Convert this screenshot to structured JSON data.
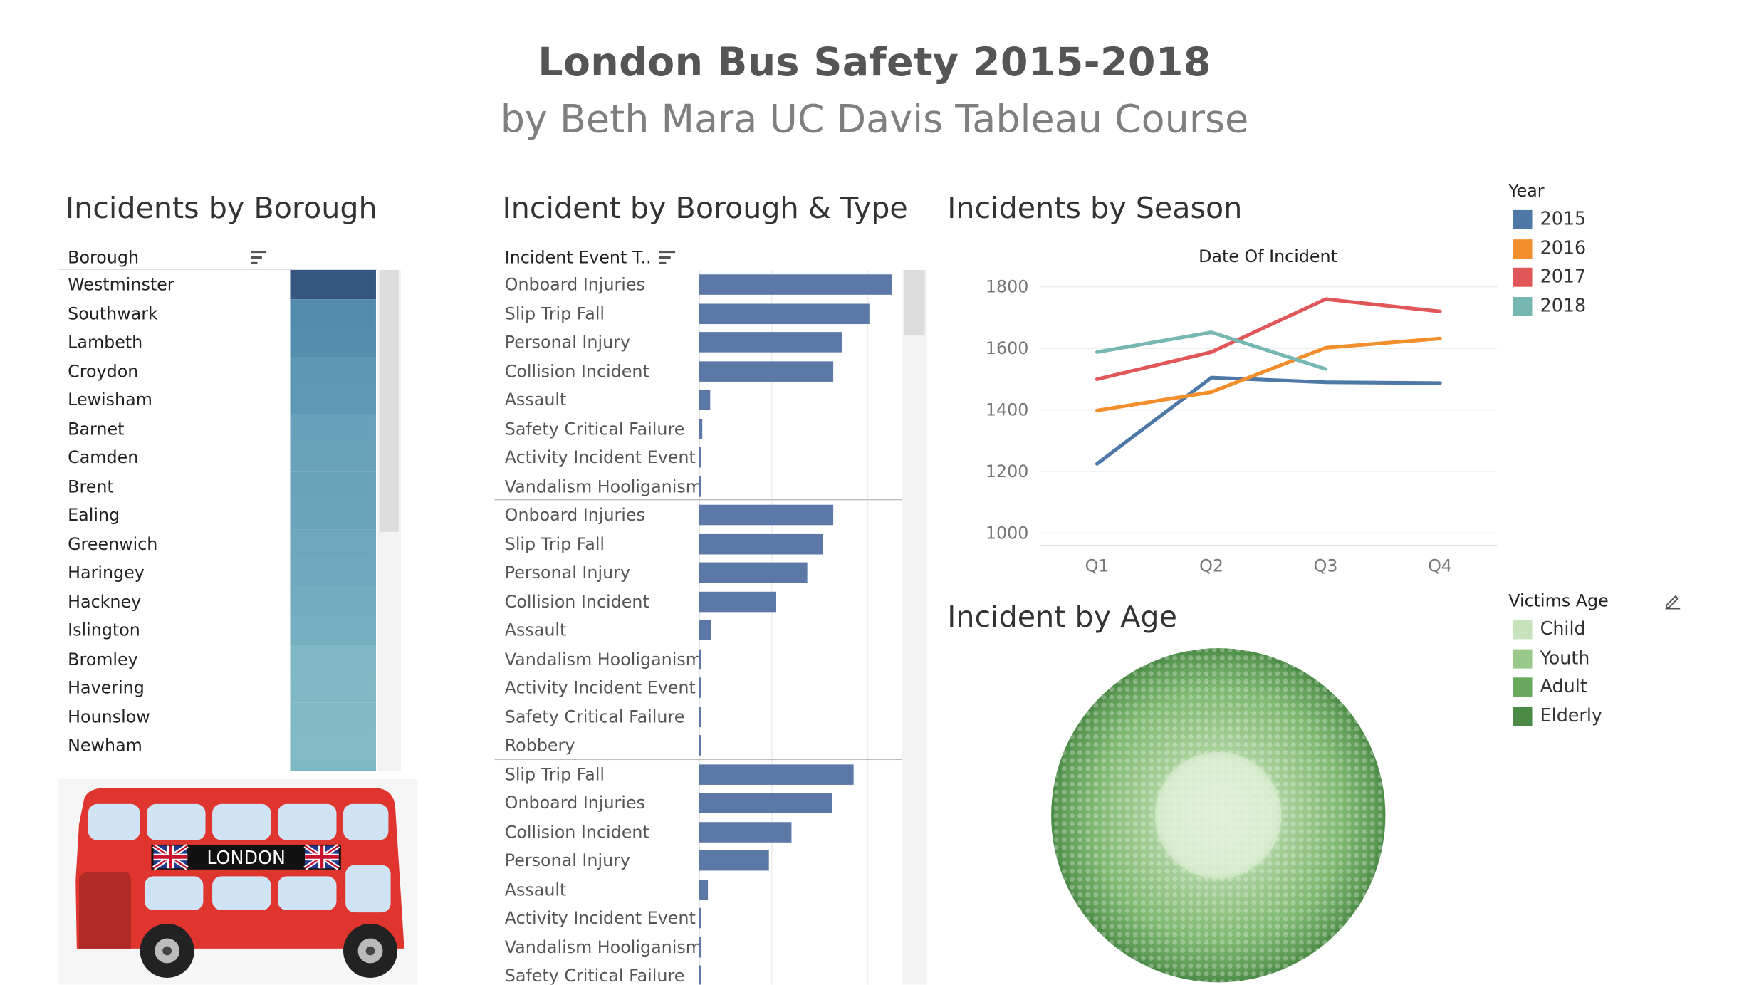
{
  "dashboard": {
    "title": "London Bus Safety 2015-2018",
    "subtitle": "by Beth Mara UC Davis Tableau Course"
  },
  "colors": {
    "y2015": "#4e79a7",
    "y2016": "#f28e2b",
    "y2017": "#e15759",
    "y2018": "#76b7b2",
    "bar": "#5b78a6",
    "bus_red": "#e0342f",
    "window": "#cfe3f5"
  },
  "bus_sign": "LONDON",
  "chart_data": [
    {
      "type": "heatmap",
      "title": "Incidents by Borough",
      "column_header": "Borough",
      "rows": [
        {
          "label": "Westminster",
          "value": 1.0
        },
        {
          "label": "Southwark",
          "value": 0.86
        },
        {
          "label": "Lambeth",
          "value": 0.84
        },
        {
          "label": "Croydon",
          "value": 0.76
        },
        {
          "label": "Lewisham",
          "value": 0.75
        },
        {
          "label": "Barnet",
          "value": 0.66
        },
        {
          "label": "Camden",
          "value": 0.65
        },
        {
          "label": "Brent",
          "value": 0.64
        },
        {
          "label": "Ealing",
          "value": 0.63
        },
        {
          "label": "Greenwich",
          "value": 0.6
        },
        {
          "label": "Haringey",
          "value": 0.58
        },
        {
          "label": "Hackney",
          "value": 0.56
        },
        {
          "label": "Islington",
          "value": 0.54
        },
        {
          "label": "Bromley",
          "value": 0.45
        },
        {
          "label": "Havering",
          "value": 0.44
        },
        {
          "label": "Hounslow",
          "value": 0.43
        },
        {
          "label": "Newham",
          "value": 0.42
        }
      ]
    },
    {
      "type": "bar",
      "title": "Incident by Borough & Type",
      "column_header": "Incident Event T..",
      "groups": [
        {
          "items": [
            {
              "label": "Onboard Injuries",
              "value": 172
            },
            {
              "label": "Slip Trip Fall",
              "value": 152
            },
            {
              "label": "Personal Injury",
              "value": 128
            },
            {
              "label": "Collision Incident",
              "value": 120
            },
            {
              "label": "Assault",
              "value": 10
            },
            {
              "label": "Safety Critical Failure",
              "value": 3
            },
            {
              "label": "Activity Incident Event",
              "value": 2
            },
            {
              "label": "Vandalism Hooliganism",
              "value": 1
            }
          ]
        },
        {
          "items": [
            {
              "label": "Onboard Injuries",
              "value": 120
            },
            {
              "label": "Slip Trip Fall",
              "value": 111
            },
            {
              "label": "Personal Injury",
              "value": 97
            },
            {
              "label": "Collision Incident",
              "value": 68
            },
            {
              "label": "Assault",
              "value": 11
            },
            {
              "label": "Vandalism Hooliganism",
              "value": 2
            },
            {
              "label": "Activity Incident Event",
              "value": 1
            },
            {
              "label": "Safety Critical Failure",
              "value": 1
            },
            {
              "label": "Robbery",
              "value": 1
            }
          ]
        },
        {
          "items": [
            {
              "label": "Slip Trip Fall",
              "value": 138
            },
            {
              "label": "Onboard Injuries",
              "value": 119
            },
            {
              "label": "Collision Incident",
              "value": 82
            },
            {
              "label": "Personal Injury",
              "value": 62
            },
            {
              "label": "Assault",
              "value": 8
            },
            {
              "label": "Activity Incident Event",
              "value": 1
            },
            {
              "label": "Vandalism Hooliganism",
              "value": 1
            },
            {
              "label": "Safety Critical Failure",
              "value": 1
            }
          ]
        }
      ]
    },
    {
      "type": "line",
      "title": "Incidents by Season",
      "xlabel": "Date Of Incident",
      "categories": [
        "Q1",
        "Q2",
        "Q3",
        "Q4"
      ],
      "ylim": [
        1000,
        1800
      ],
      "yticks": [
        "1000",
        "1200",
        "1400",
        "1600",
        "1800"
      ],
      "legend_title": "Year",
      "series": [
        {
          "name": "2015",
          "color": "#4e79a7",
          "values": [
            1225,
            1505,
            1490,
            1487
          ]
        },
        {
          "name": "2016",
          "color": "#f28e2b",
          "values": [
            1398,
            1458,
            1602,
            1632
          ]
        },
        {
          "name": "2017",
          "color": "#e15759",
          "values": [
            1500,
            1588,
            1760,
            1720
          ]
        },
        {
          "name": "2018",
          "color": "#76b7b2",
          "values": [
            1588,
            1652,
            1533,
            null
          ]
        }
      ]
    },
    {
      "type": "pie",
      "title": "Incident by Age",
      "legend_title": "Victims Age",
      "legend": [
        {
          "name": "Child",
          "color": "#c7e3bb"
        },
        {
          "name": "Youth",
          "color": "#98c98a"
        },
        {
          "name": "Adult",
          "color": "#6aa85e"
        },
        {
          "name": "Elderly",
          "color": "#4a8a45"
        }
      ]
    }
  ]
}
